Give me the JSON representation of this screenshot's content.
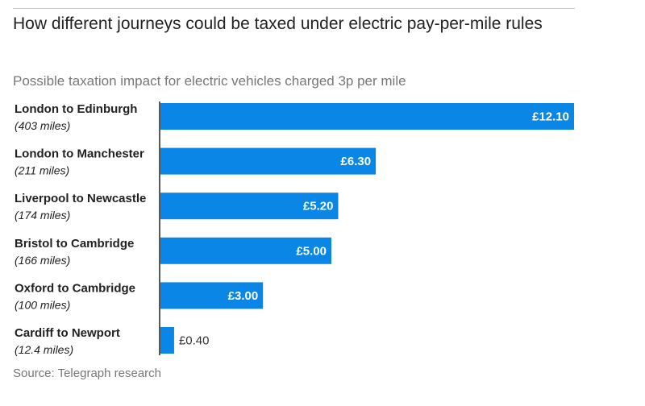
{
  "chart_data": {
    "type": "bar",
    "orientation": "horizontal",
    "title": "How different journeys could be taxed under electric pay-per-mile rules",
    "subtitle": "Possible taxation impact for electric vehicles charged 3p per mile",
    "source": "Source: Telegraph research",
    "categories": [
      "London to Edinburgh",
      "London to Manchester",
      "Liverpool to Newcastle",
      "Bristol to Cambridge",
      "Oxford to Cambridge",
      "Cardiff to Newport"
    ],
    "distances": [
      "(403 miles)",
      "(211 miles)",
      "(174 miles)",
      "(166 miles)",
      "(100 miles)",
      "(12.4 miles)"
    ],
    "values": [
      12.1,
      6.3,
      5.2,
      5.0,
      3.0,
      0.4
    ],
    "value_labels": [
      "£12.10",
      "£6.30",
      "£5.20",
      "£5.00",
      "£3.00",
      "£0.40"
    ],
    "xlim": [
      0,
      12.1
    ],
    "bar_color": "#0a87e6",
    "axis_color": "#222222",
    "grid": false
  }
}
